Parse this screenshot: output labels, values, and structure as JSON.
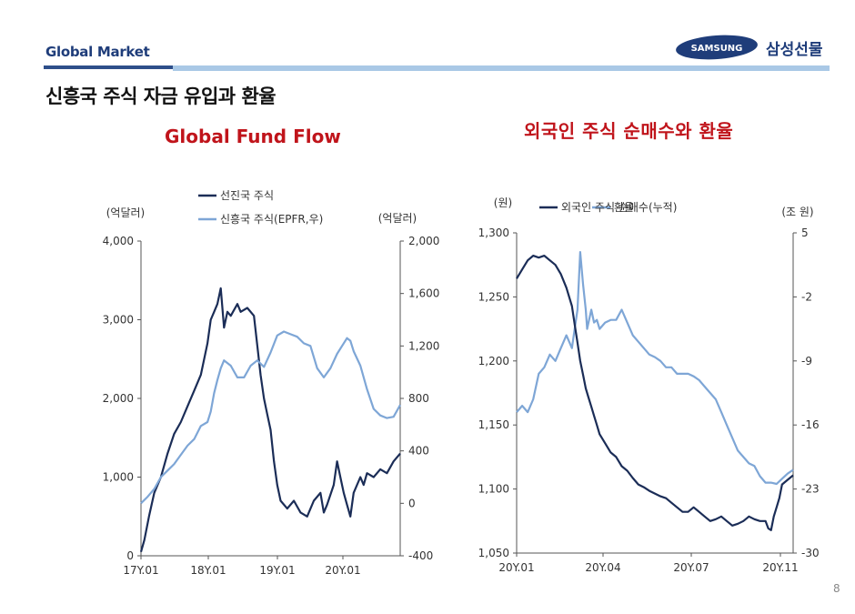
{
  "header": {
    "section": "Global Market",
    "logo_text": "SAMSUNG",
    "company": "삼성선물"
  },
  "page_title": "신흥국 주식 자금 유입과 환율",
  "page_number": "8",
  "colors": {
    "dark_series": "#1b2d57",
    "light_series": "#7ea6d6",
    "title_red": "#c0141b",
    "brand_blue": "#1f3d7a"
  },
  "chart_data": [
    {
      "type": "line",
      "title": "Global Fund Flow",
      "left_unit": "(억달러)",
      "right_unit": "(억달러)",
      "x_labels": [
        "17Y.01",
        "18Y.01",
        "19Y.01",
        "20Y.01"
      ],
      "x_range": [
        2017.0,
        2020.9
      ],
      "y_left": {
        "range": [
          0,
          4000
        ],
        "ticks": [
          "4,000",
          "3,000",
          "2,000",
          "1,000",
          "0"
        ]
      },
      "y_right": {
        "range": [
          -400,
          2000
        ],
        "ticks": [
          "2,000",
          "1,600",
          "1,200",
          "800",
          "400",
          "0",
          "-400"
        ]
      },
      "series": [
        {
          "name": "선진국 주식",
          "axis": "left",
          "x": [
            2017.0,
            2017.05,
            2017.12,
            2017.2,
            2017.3,
            2017.4,
            2017.5,
            2017.6,
            2017.7,
            2017.8,
            2017.9,
            2018.0,
            2018.05,
            2018.1,
            2018.15,
            2018.2,
            2018.25,
            2018.3,
            2018.35,
            2018.45,
            2018.5,
            2018.6,
            2018.7,
            2018.8,
            2018.85,
            2018.9,
            2018.95,
            2019.0,
            2019.05,
            2019.1,
            2019.2,
            2019.3,
            2019.4,
            2019.5,
            2019.6,
            2019.7,
            2019.75,
            2019.8,
            2019.9,
            2019.95,
            2020.0,
            2020.05,
            2020.1,
            2020.15,
            2020.2,
            2020.3,
            2020.35,
            2020.4,
            2020.5,
            2020.6,
            2020.7,
            2020.8,
            2020.85,
            2020.9
          ],
          "y": [
            50,
            200,
            500,
            800,
            1000,
            1300,
            1550,
            1700,
            1900,
            2100,
            2300,
            2700,
            3000,
            3100,
            3200,
            3400,
            2900,
            3100,
            3050,
            3200,
            3100,
            3150,
            3050,
            2300,
            2000,
            1800,
            1600,
            1200,
            900,
            700,
            600,
            700,
            550,
            500,
            700,
            800,
            550,
            650,
            900,
            1200,
            1000,
            800,
            650,
            500,
            800,
            1000,
            900,
            1050,
            1000,
            1100,
            1050,
            1200,
            1250,
            1300
          ]
        },
        {
          "name": "신흥국 주식(EPFR,우)",
          "axis": "right",
          "x": [
            2017.0,
            2017.1,
            2017.2,
            2017.3,
            2017.4,
            2017.5,
            2017.6,
            2017.7,
            2017.8,
            2017.9,
            2018.0,
            2018.05,
            2018.1,
            2018.15,
            2018.2,
            2018.25,
            2018.35,
            2018.45,
            2018.55,
            2018.65,
            2018.75,
            2018.85,
            2018.95,
            2019.05,
            2019.15,
            2019.25,
            2019.35,
            2019.45,
            2019.55,
            2019.65,
            2019.75,
            2019.85,
            2019.95,
            2020.05,
            2020.1,
            2020.15,
            2020.2,
            2020.3,
            2020.4,
            2020.5,
            2020.6,
            2020.7,
            2020.8,
            2020.9
          ],
          "y": [
            0,
            50,
            110,
            200,
            250,
            300,
            370,
            440,
            490,
            590,
            620,
            700,
            840,
            940,
            1030,
            1090,
            1050,
            960,
            960,
            1050,
            1090,
            1040,
            1150,
            1280,
            1310,
            1290,
            1270,
            1220,
            1200,
            1030,
            960,
            1030,
            1140,
            1220,
            1260,
            1240,
            1160,
            1050,
            870,
            720,
            670,
            650,
            660,
            750
          ]
        }
      ]
    },
    {
      "type": "line",
      "title": "외국인 주식 순매수와 환율",
      "left_unit": "(원)",
      "right_unit": "(조 원)",
      "x_labels": [
        "20Y.01",
        "20Y.04",
        "20Y.07",
        "20Y.11"
      ],
      "x_range": [
        0,
        10
      ],
      "y_left": {
        "range": [
          1050,
          1300
        ],
        "ticks": [
          "1,300",
          "1,250",
          "1,200",
          "1,150",
          "1,100",
          "1,050"
        ]
      },
      "y_right": {
        "range": [
          -30,
          5
        ],
        "ticks": [
          "5",
          "-2",
          "-9",
          "-16",
          "-23",
          "-30"
        ]
      },
      "series": [
        {
          "name": "환율",
          "axis": "left",
          "x": [
            0,
            0.2,
            0.4,
            0.6,
            0.8,
            1.0,
            1.2,
            1.4,
            1.6,
            1.8,
            2.0,
            2.1,
            2.2,
            2.3,
            2.4,
            2.5,
            2.55,
            2.6,
            2.7,
            2.8,
            2.9,
            3.0,
            3.2,
            3.4,
            3.6,
            3.8,
            4.0,
            4.2,
            4.4,
            4.6,
            4.8,
            5.0,
            5.2,
            5.4,
            5.6,
            5.8,
            6.0,
            6.2,
            6.4,
            6.6,
            6.8,
            7.0,
            7.2,
            7.4,
            7.6,
            7.8,
            8.0,
            8.2,
            8.4,
            8.6,
            8.8,
            9.0,
            9.2,
            9.4,
            9.6,
            9.8,
            10.0
          ],
          "y": [
            1160,
            1165,
            1160,
            1170,
            1190,
            1195,
            1205,
            1200,
            1210,
            1220,
            1210,
            1225,
            1240,
            1285,
            1260,
            1240,
            1225,
            1230,
            1240,
            1230,
            1232,
            1225,
            1230,
            1232,
            1232,
            1240,
            1230,
            1220,
            1215,
            1210,
            1205,
            1203,
            1200,
            1195,
            1195,
            1190,
            1190,
            1190,
            1188,
            1185,
            1180,
            1175,
            1170,
            1160,
            1150,
            1140,
            1130,
            1125,
            1120,
            1118,
            1110,
            1105,
            1105,
            1104,
            1108,
            1112,
            1115
          ]
        },
        {
          "name": "외국인 주식 순매수(누적)",
          "axis": "right",
          "x": [
            0,
            0.2,
            0.4,
            0.6,
            0.8,
            1.0,
            1.2,
            1.4,
            1.6,
            1.8,
            2.0,
            2.1,
            2.2,
            2.3,
            2.4,
            2.5,
            2.6,
            2.7,
            2.8,
            2.9,
            3.0,
            3.2,
            3.4,
            3.6,
            3.8,
            4.0,
            4.2,
            4.4,
            4.6,
            4.8,
            5.0,
            5.2,
            5.4,
            5.6,
            5.8,
            6.0,
            6.2,
            6.4,
            6.6,
            6.8,
            7.0,
            7.2,
            7.4,
            7.6,
            7.8,
            8.0,
            8.2,
            8.4,
            8.6,
            8.8,
            9.0,
            9.1,
            9.2,
            9.3,
            9.4,
            9.5,
            9.6,
            9.8,
            10.0
          ],
          "y": [
            0,
            1,
            2,
            2.5,
            2.3,
            2.5,
            2.0,
            1.5,
            0.5,
            -1,
            -3,
            -5,
            -7,
            -9,
            -10.5,
            -12,
            -13,
            -14,
            -15,
            -16,
            -17,
            -18,
            -19,
            -19.5,
            -20.5,
            -21,
            -21.8,
            -22.5,
            -22.8,
            -23.2,
            -23.5,
            -23.8,
            -24,
            -24.5,
            -25,
            -25.5,
            -25.5,
            -25,
            -25.5,
            -26,
            -26.5,
            -26.3,
            -26,
            -26.5,
            -27,
            -26.8,
            -26.5,
            -26,
            -26.3,
            -26.5,
            -26.5,
            -27.3,
            -27.5,
            -26,
            -25,
            -24,
            -22.5,
            -22,
            -21.5
          ]
        }
      ]
    }
  ]
}
